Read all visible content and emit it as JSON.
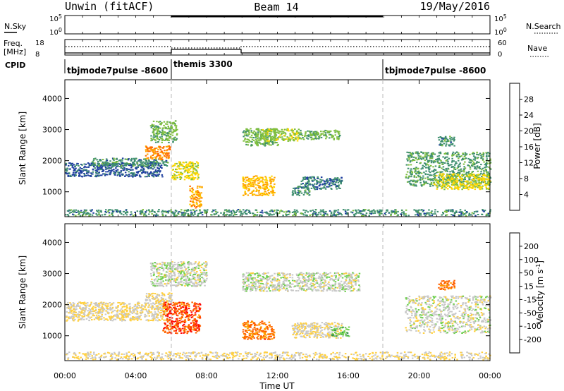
{
  "header": {
    "station": "Unwin (fitACF)",
    "beam": "Beam 14",
    "date": "19/May/2016"
  },
  "left_labels": {
    "nsky": "N.Sky",
    "freq_line1": "Freq.",
    "freq_line2": "[MHz]",
    "cpid": "CPID"
  },
  "right_labels": {
    "nsearch": "N.Search",
    "nave": "Nave"
  },
  "cpid_segments": [
    {
      "label": "tbjmode7pulse -8600",
      "start_h": 0,
      "end_h": 6
    },
    {
      "label": "themis 3300",
      "start_h": 6,
      "end_h": 18
    },
    {
      "label": "tbjmode7pulse -8600",
      "start_h": 18,
      "end_h": 24
    }
  ],
  "x_axis": {
    "label": "Time UT",
    "range_h": [
      0,
      24
    ],
    "tick_hours": [
      0,
      4,
      8,
      12,
      16,
      20,
      24
    ],
    "tick_labels": [
      "00:00",
      "04:00",
      "08:00",
      "12:00",
      "16:00",
      "20:00",
      "00:00"
    ]
  },
  "nsky_axis": {
    "left_ticks": [
      "10^5",
      "10^0"
    ],
    "right_ticks": [
      "10^5",
      "10^0"
    ]
  },
  "freq_axis": {
    "left_ticks": [
      "18",
      "8"
    ],
    "right_ticks": [
      "60",
      "0"
    ]
  },
  "colors": {
    "power": [
      "#0000ff",
      "#1f3f9f",
      "#3f8f6f",
      "#7fbf3f",
      "#ffd700",
      "#ffa500",
      "#ff6a00",
      "#ff0000"
    ],
    "velocity": [
      "#ff0000",
      "#ff6000",
      "#ff9f00",
      "#ffd040",
      "#c8c8c8",
      "#70d050",
      "#2f8f4f",
      "#2f6fbf",
      "#1f3f9f"
    ]
  },
  "chart_data": [
    {
      "type": "heatmap",
      "title": "Power",
      "xlabel": "",
      "ylabel": "Slant Range [km]",
      "ylim": [
        200,
        4600
      ],
      "y_ticks": [
        1000,
        2000,
        3000,
        4000
      ],
      "colorbar_label": "Power [dB]",
      "colorbar_ticks": [
        "4",
        "8",
        "12",
        "16",
        "20",
        "24",
        "28"
      ],
      "colorbar_range": [
        0,
        32
      ],
      "regions": [
        {
          "t0": 0.0,
          "t1": 5.5,
          "r0": 1500,
          "r1": 1950,
          "v": 7
        },
        {
          "t0": 1.5,
          "t1": 5.8,
          "r0": 1850,
          "r1": 2100,
          "v": 10
        },
        {
          "t0": 4.5,
          "t1": 5.9,
          "r0": 2050,
          "r1": 2500,
          "v": 24
        },
        {
          "t0": 4.8,
          "t1": 6.3,
          "r0": 2600,
          "r1": 3300,
          "v": 13
        },
        {
          "t0": 6.0,
          "t1": 7.5,
          "r0": 1400,
          "r1": 2000,
          "v": 17
        },
        {
          "t0": 7.0,
          "t1": 7.7,
          "r0": 500,
          "r1": 1200,
          "v": 22
        },
        {
          "t0": 10.0,
          "t1": 12.0,
          "r0": 2500,
          "r1": 3050,
          "v": 13
        },
        {
          "t0": 11.0,
          "t1": 13.2,
          "r0": 2650,
          "r1": 3050,
          "v": 15
        },
        {
          "t0": 13.2,
          "t1": 15.5,
          "r0": 2700,
          "r1": 3000,
          "v": 13
        },
        {
          "t0": 10.0,
          "t1": 11.8,
          "r0": 900,
          "r1": 1550,
          "v": 21
        },
        {
          "t0": 12.8,
          "t1": 13.8,
          "r0": 900,
          "r1": 1200,
          "v": 10
        },
        {
          "t0": 13.3,
          "t1": 15.6,
          "r0": 1100,
          "r1": 1500,
          "v": 9
        },
        {
          "t0": 19.2,
          "t1": 24.0,
          "r0": 1200,
          "r1": 2300,
          "v": 11
        },
        {
          "t0": 20.8,
          "t1": 24.0,
          "r0": 1100,
          "r1": 1600,
          "v": 17
        },
        {
          "t0": 21.0,
          "t1": 22.0,
          "r0": 2500,
          "r1": 2800,
          "v": 10
        },
        {
          "t0": 0.0,
          "t1": 24.0,
          "r0": 250,
          "r1": 450,
          "v": 10
        }
      ]
    },
    {
      "type": "heatmap",
      "title": "Velocity",
      "xlabel": "Time UT",
      "ylabel": "Slant Range [km]",
      "ylim": [
        200,
        4600
      ],
      "y_ticks": [
        1000,
        2000,
        3000,
        4000
      ],
      "colorbar_label": "Velocity [m s^-1]",
      "colorbar_ticks": [
        "-200",
        "-100",
        "-50",
        "-15",
        "15",
        "50",
        "100",
        "200"
      ],
      "colorbar_range": [
        -250,
        250
      ],
      "regions": [
        {
          "t0": 0.0,
          "t1": 5.8,
          "r0": 1500,
          "r1": 2100,
          "v": -30
        },
        {
          "t0": 4.5,
          "t1": 6.0,
          "r0": 2100,
          "r1": 2400,
          "v": -30
        },
        {
          "t0": 5.5,
          "t1": 7.6,
          "r0": 1100,
          "r1": 2100,
          "v": -180
        },
        {
          "t0": 4.8,
          "t1": 8.0,
          "r0": 2600,
          "r1": 3400,
          "v": 5
        },
        {
          "t0": 10.0,
          "t1": 16.6,
          "r0": 2450,
          "r1": 3050,
          "v": 5
        },
        {
          "t0": 10.0,
          "t1": 11.8,
          "r0": 900,
          "r1": 1500,
          "v": -150
        },
        {
          "t0": 12.8,
          "t1": 15.6,
          "r0": 950,
          "r1": 1450,
          "v": -25
        },
        {
          "t0": 15.0,
          "t1": 16.0,
          "r0": 1000,
          "r1": 1300,
          "v": 60
        },
        {
          "t0": 19.2,
          "t1": 24.0,
          "r0": 1100,
          "r1": 2300,
          "v": 0
        },
        {
          "t0": 21.0,
          "t1": 22.0,
          "r0": 2500,
          "r1": 2800,
          "v": -150
        },
        {
          "t0": 0.0,
          "t1": 24.0,
          "r0": 250,
          "r1": 500,
          "v": -30
        }
      ]
    }
  ]
}
